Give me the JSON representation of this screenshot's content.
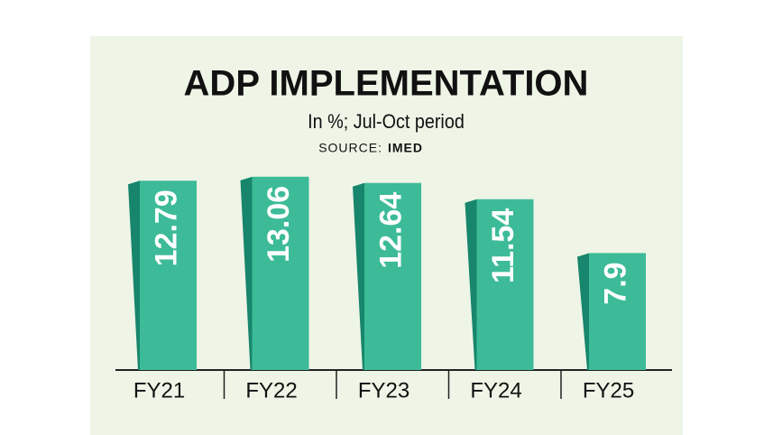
{
  "chart_data": {
    "type": "bar",
    "title": "ADP IMPLEMENTATION",
    "subtitle": "In %; Jul-Oct period",
    "source_label": "SOURCE:",
    "source": "IMED",
    "categories": [
      "FY21",
      "FY22",
      "FY23",
      "FY24",
      "FY25"
    ],
    "values": [
      12.79,
      13.06,
      12.64,
      11.54,
      7.9
    ],
    "color": "#3dbb98",
    "side_color": "#17866c"
  }
}
